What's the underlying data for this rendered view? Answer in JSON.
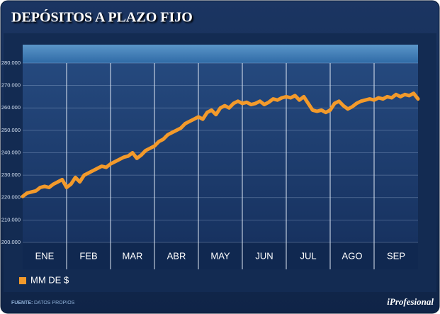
{
  "chart_data": {
    "type": "line",
    "title": "DEPÓSITOS A PLAZO FIJO",
    "xlim": [
      0,
      9
    ],
    "xticks": [
      {
        "value": 0.5,
        "label": "ENE"
      },
      {
        "value": 1.5,
        "label": "FEB"
      },
      {
        "value": 2.5,
        "label": "MAR"
      },
      {
        "value": 3.5,
        "label": "ABR"
      },
      {
        "value": 4.5,
        "label": "MAY"
      },
      {
        "value": 5.5,
        "label": "JUN"
      },
      {
        "value": 6.5,
        "label": "JUL"
      },
      {
        "value": 7.5,
        "label": "AGO"
      },
      {
        "value": 8.5,
        "label": "SEP"
      }
    ],
    "x": [
      0,
      0.1,
      0.2,
      0.3,
      0.4,
      0.5,
      0.6,
      0.7,
      0.8,
      0.9,
      1,
      1.1,
      1.2,
      1.3,
      1.4,
      1.5,
      1.6,
      1.7,
      1.8,
      1.9,
      2,
      2.1,
      2.2,
      2.3,
      2.4,
      2.5,
      2.6,
      2.7,
      2.8,
      2.9,
      3,
      3.1,
      3.2,
      3.3,
      3.4,
      3.5,
      3.6,
      3.7,
      3.8,
      3.9,
      4,
      4.1,
      4.2,
      4.3,
      4.4,
      4.5,
      4.6,
      4.7,
      4.8,
      4.9,
      5,
      5.1,
      5.2,
      5.3,
      5.4,
      5.5,
      5.6,
      5.7,
      5.8,
      5.9,
      6,
      6.1,
      6.2,
      6.3,
      6.4,
      6.5,
      6.6,
      6.7,
      6.8,
      6.9,
      7,
      7.1,
      7.2,
      7.3,
      7.4,
      7.5,
      7.6,
      7.7,
      7.8,
      7.9,
      8,
      8.1,
      8.2,
      8.3,
      8.4,
      8.5,
      8.6,
      8.7,
      8.8,
      8.9,
      9
    ],
    "series": [
      {
        "name": "MM DE $",
        "color": "#f39a2b",
        "values": [
          220500,
          222000,
          222500,
          223000,
          224500,
          225000,
          224500,
          226000,
          227000,
          228000,
          224500,
          226000,
          229000,
          227000,
          230000,
          231000,
          232000,
          233000,
          234000,
          233500,
          235000,
          236000,
          237000,
          238000,
          238500,
          240000,
          237500,
          239000,
          241000,
          242000,
          243000,
          245000,
          246000,
          248000,
          249000,
          250000,
          251000,
          253000,
          254000,
          255000,
          256000,
          255000,
          258000,
          259000,
          257000,
          260000,
          261000,
          260000,
          262000,
          263000,
          262000,
          262500,
          261500,
          262000,
          263000,
          261500,
          262500,
          264000,
          263500,
          264500,
          265000,
          264500,
          265500,
          263500,
          265000,
          262000,
          259000,
          258500,
          259000,
          258000,
          259000,
          262000,
          263000,
          261000,
          259500,
          260500,
          262000,
          263000,
          263500,
          264000,
          263500,
          264500,
          264000,
          265000,
          264500,
          266000,
          265000,
          266000,
          265500,
          266500,
          264000
        ]
      }
    ],
    "ylim": [
      200000,
      280000
    ],
    "yticks": [
      {
        "value": 200000,
        "label": "200.000"
      },
      {
        "value": 210000,
        "label": "210.000"
      },
      {
        "value": 220000,
        "label": "220.000"
      },
      {
        "value": 230000,
        "label": "230.000"
      },
      {
        "value": 240000,
        "label": "240.000"
      },
      {
        "value": 250000,
        "label": "250.000"
      },
      {
        "value": 260000,
        "label": "260.000"
      },
      {
        "value": 270000,
        "label": "270.000"
      },
      {
        "value": 280000,
        "label": "280.000"
      }
    ],
    "grid": true
  },
  "footer": {
    "source_label": "FUENTE:",
    "source": "DATOS PROPIOS",
    "logo": "iProfesional"
  }
}
